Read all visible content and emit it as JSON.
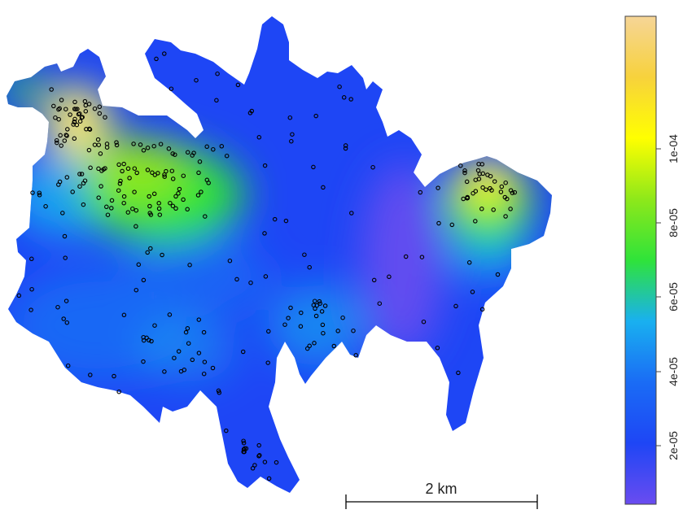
{
  "map": {
    "scale_bar": {
      "label": "2 km"
    }
  },
  "legend": {
    "ticks": [
      "2e-05",
      "4e-05",
      "6e-05",
      "8e-05",
      "1e-04"
    ],
    "colors": [
      "#6a4cf0",
      "#1e46f5",
      "#1a6cf5",
      "#19b0f0",
      "#2fe33a",
      "#8ee81a",
      "#ffff00",
      "#f7d23c",
      "#f6d597"
    ]
  }
}
